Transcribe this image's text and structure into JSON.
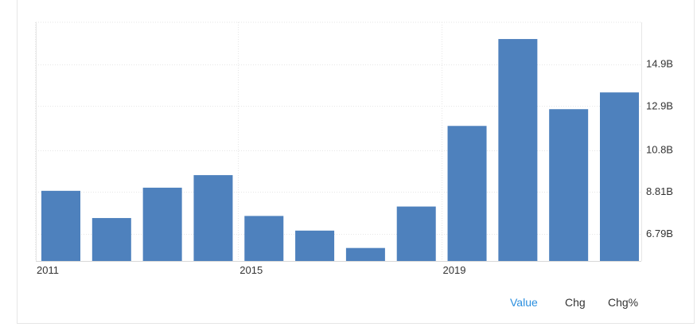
{
  "colors": {
    "bar": "#4e81bd",
    "grid": "#e6e6e6",
    "axis_text": "#333333",
    "active_tab": "#2b8fdf"
  },
  "tabs": [
    {
      "label": "Value",
      "active": true
    },
    {
      "label": "Chg",
      "active": false
    },
    {
      "label": "Chg%",
      "active": false
    }
  ],
  "chart_data": {
    "type": "bar",
    "categories": [
      "2011",
      "2012",
      "2013",
      "2014",
      "2015",
      "2016",
      "2017",
      "2018",
      "2019",
      "2020",
      "2021",
      "2022"
    ],
    "x_tick_labels": [
      "2011",
      "2015",
      "2019"
    ],
    "values": [
      8.85,
      7.55,
      9.0,
      9.6,
      7.65,
      6.95,
      6.12,
      8.1,
      11.95,
      16.1,
      12.75,
      13.55
    ],
    "unit": "B",
    "y_tick_values": [
      6.79,
      8.81,
      10.8,
      12.9,
      14.9
    ],
    "y_tick_labels": [
      "6.79B",
      "8.81B",
      "10.8B",
      "12.9B",
      "14.9B"
    ],
    "ylim": [
      5.5,
      16.9
    ],
    "y_axis_position": "right",
    "grid": true,
    "title": "",
    "xlabel": "",
    "ylabel": ""
  }
}
